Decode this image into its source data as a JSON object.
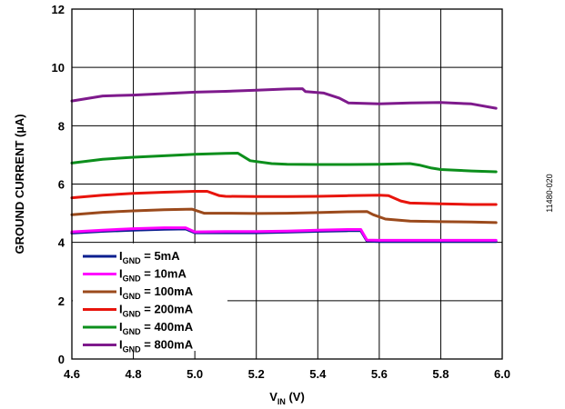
{
  "chart_data": {
    "type": "line",
    "title": "",
    "xlabel": {
      "main": "V",
      "sub": "IN",
      "suffix": " (V)"
    },
    "ylabel": "GROUND CURRENT (µA)",
    "xlim": [
      4.6,
      6.0
    ],
    "ylim": [
      0,
      12
    ],
    "grid": true,
    "legend_position": "bottom-left",
    "x_ticks": [
      "4.6",
      "4.8",
      "5.0",
      "5.2",
      "5.4",
      "5.6",
      "5.8",
      "6.0"
    ],
    "y_ticks": [
      "0",
      "2",
      "4",
      "6",
      "8",
      "10",
      "12"
    ],
    "series": [
      {
        "name": "I_GND = 5mA",
        "label_main": "I",
        "label_sub": "GND",
        "label_rest": " = 5mA",
        "color": "#0b1f8f",
        "points": [
          [
            4.6,
            4.32
          ],
          [
            4.7,
            4.38
          ],
          [
            4.8,
            4.42
          ],
          [
            4.9,
            4.45
          ],
          [
            4.97,
            4.46
          ],
          [
            5.0,
            4.33
          ],
          [
            5.1,
            4.33
          ],
          [
            5.2,
            4.33
          ],
          [
            5.3,
            4.35
          ],
          [
            5.4,
            4.38
          ],
          [
            5.5,
            4.4
          ],
          [
            5.54,
            4.4
          ],
          [
            5.56,
            4.05
          ],
          [
            5.6,
            4.03
          ],
          [
            5.7,
            4.03
          ],
          [
            5.8,
            4.03
          ],
          [
            5.9,
            4.03
          ],
          [
            5.98,
            4.03
          ]
        ]
      },
      {
        "name": "I_GND = 10mA",
        "label_main": "I",
        "label_sub": "GND",
        "label_rest": " = 10mA",
        "color": "#ff00ff",
        "points": [
          [
            4.6,
            4.36
          ],
          [
            4.7,
            4.42
          ],
          [
            4.8,
            4.47
          ],
          [
            4.9,
            4.5
          ],
          [
            4.97,
            4.5
          ],
          [
            5.0,
            4.36
          ],
          [
            5.1,
            4.37
          ],
          [
            5.2,
            4.37
          ],
          [
            5.3,
            4.39
          ],
          [
            5.4,
            4.42
          ],
          [
            5.5,
            4.44
          ],
          [
            5.54,
            4.44
          ],
          [
            5.56,
            4.08
          ],
          [
            5.6,
            4.07
          ],
          [
            5.7,
            4.07
          ],
          [
            5.8,
            4.07
          ],
          [
            5.9,
            4.07
          ],
          [
            5.98,
            4.07
          ]
        ]
      },
      {
        "name": "I_GND = 100mA",
        "label_main": "I",
        "label_sub": "GND",
        "label_rest": " = 100mA",
        "color": "#9b4a1c",
        "points": [
          [
            4.6,
            4.95
          ],
          [
            4.7,
            5.03
          ],
          [
            4.8,
            5.08
          ],
          [
            4.9,
            5.12
          ],
          [
            4.99,
            5.14
          ],
          [
            5.03,
            5.0
          ],
          [
            5.1,
            5.0
          ],
          [
            5.2,
            4.99
          ],
          [
            5.3,
            5.0
          ],
          [
            5.4,
            5.02
          ],
          [
            5.5,
            5.05
          ],
          [
            5.56,
            5.06
          ],
          [
            5.58,
            4.95
          ],
          [
            5.62,
            4.8
          ],
          [
            5.7,
            4.73
          ],
          [
            5.8,
            4.71
          ],
          [
            5.9,
            4.7
          ],
          [
            5.98,
            4.68
          ]
        ]
      },
      {
        "name": "I_GND = 200mA",
        "label_main": "I",
        "label_sub": "GND",
        "label_rest": " = 200mA",
        "color": "#e8140c",
        "points": [
          [
            4.6,
            5.53
          ],
          [
            4.7,
            5.62
          ],
          [
            4.8,
            5.68
          ],
          [
            4.9,
            5.72
          ],
          [
            5.0,
            5.75
          ],
          [
            5.04,
            5.75
          ],
          [
            5.08,
            5.6
          ],
          [
            5.1,
            5.58
          ],
          [
            5.2,
            5.57
          ],
          [
            5.3,
            5.57
          ],
          [
            5.4,
            5.58
          ],
          [
            5.5,
            5.6
          ],
          [
            5.6,
            5.62
          ],
          [
            5.63,
            5.6
          ],
          [
            5.67,
            5.42
          ],
          [
            5.7,
            5.35
          ],
          [
            5.8,
            5.32
          ],
          [
            5.9,
            5.3
          ],
          [
            5.98,
            5.3
          ]
        ]
      },
      {
        "name": "I_GND = 400mA",
        "label_main": "I",
        "label_sub": "GND",
        "label_rest": " = 400mA",
        "color": "#0c8f1c",
        "points": [
          [
            4.6,
            6.72
          ],
          [
            4.7,
            6.85
          ],
          [
            4.8,
            6.92
          ],
          [
            4.9,
            6.97
          ],
          [
            5.0,
            7.02
          ],
          [
            5.1,
            7.05
          ],
          [
            5.14,
            7.06
          ],
          [
            5.18,
            6.8
          ],
          [
            5.25,
            6.7
          ],
          [
            5.3,
            6.68
          ],
          [
            5.4,
            6.67
          ],
          [
            5.5,
            6.67
          ],
          [
            5.6,
            6.68
          ],
          [
            5.7,
            6.7
          ],
          [
            5.73,
            6.65
          ],
          [
            5.77,
            6.55
          ],
          [
            5.8,
            6.5
          ],
          [
            5.9,
            6.45
          ],
          [
            5.98,
            6.42
          ]
        ]
      },
      {
        "name": "I_GND = 800mA",
        "label_main": "I",
        "label_sub": "GND",
        "label_rest": " = 800mA",
        "color": "#7e1a8c",
        "points": [
          [
            4.6,
            8.85
          ],
          [
            4.7,
            9.02
          ],
          [
            4.8,
            9.05
          ],
          [
            4.9,
            9.1
          ],
          [
            5.0,
            9.15
          ],
          [
            5.1,
            9.18
          ],
          [
            5.2,
            9.22
          ],
          [
            5.3,
            9.26
          ],
          [
            5.35,
            9.27
          ],
          [
            5.36,
            9.17
          ],
          [
            5.42,
            9.12
          ],
          [
            5.47,
            8.95
          ],
          [
            5.5,
            8.78
          ],
          [
            5.6,
            8.75
          ],
          [
            5.7,
            8.78
          ],
          [
            5.8,
            8.8
          ],
          [
            5.9,
            8.75
          ],
          [
            5.98,
            8.6
          ]
        ]
      }
    ]
  },
  "figure_id": "11480-020"
}
